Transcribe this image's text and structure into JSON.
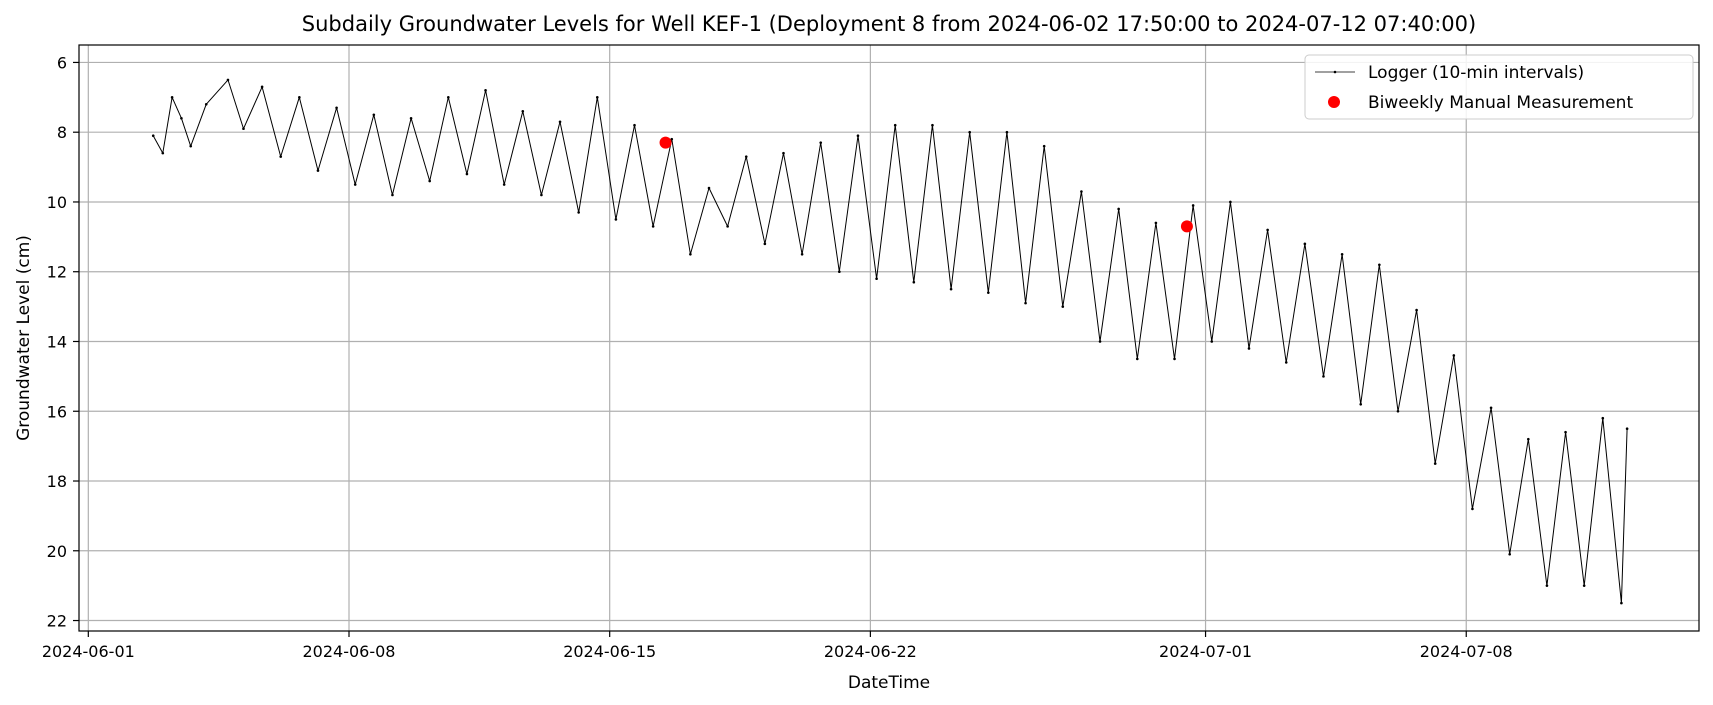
{
  "chart_data": {
    "type": "line",
    "title": "Subdaily Groundwater Levels for Well KEF-1 (Deployment 8 from 2024-06-02 17:50:00 to 2024-07-12 07:40:00)",
    "xlabel": "DateTime",
    "ylabel": "Groundwater Level (cm)",
    "xlim": [
      "2024-05-31 18:00",
      "2024-07-14 06:00"
    ],
    "ylim": [
      22.3,
      5.5
    ],
    "y_inverted": true,
    "grid": true,
    "legend_position": "top-right",
    "x_ticks": [
      "2024-06-01",
      "2024-06-08",
      "2024-06-15",
      "2024-06-22",
      "2024-07-01",
      "2024-07-08"
    ],
    "y_ticks": [
      6,
      8,
      10,
      12,
      14,
      16,
      18,
      20,
      22
    ],
    "series": [
      {
        "name": "Logger (10-min intervals)",
        "kind": "line",
        "color": "#000000",
        "x": [
          "2024-06-02 17:50",
          "2024-06-03 00:00",
          "2024-06-03 06:00",
          "2024-06-03 12:00",
          "2024-06-03 18:00",
          "2024-06-04 04:00",
          "2024-06-04 18:00",
          "2024-06-05 04:00",
          "2024-06-05 16:00",
          "2024-06-06 04:00",
          "2024-06-06 16:00",
          "2024-06-07 04:00",
          "2024-06-07 16:00",
          "2024-06-08 04:00",
          "2024-06-08 16:00",
          "2024-06-09 04:00",
          "2024-06-09 16:00",
          "2024-06-10 04:00",
          "2024-06-10 16:00",
          "2024-06-11 04:00",
          "2024-06-11 16:00",
          "2024-06-12 04:00",
          "2024-06-12 16:00",
          "2024-06-13 04:00",
          "2024-06-13 16:00",
          "2024-06-14 04:00",
          "2024-06-14 16:00",
          "2024-06-15 04:00",
          "2024-06-15 16:00",
          "2024-06-16 04:00",
          "2024-06-16 16:00",
          "2024-06-17 04:00",
          "2024-06-17 16:00",
          "2024-06-18 04:00",
          "2024-06-18 16:00",
          "2024-06-19 04:00",
          "2024-06-19 16:00",
          "2024-06-20 04:00",
          "2024-06-20 16:00",
          "2024-06-21 04:00",
          "2024-06-21 16:00",
          "2024-06-22 04:00",
          "2024-06-22 16:00",
          "2024-06-23 04:00",
          "2024-06-23 16:00",
          "2024-06-24 04:00",
          "2024-06-24 16:00",
          "2024-06-25 04:00",
          "2024-06-25 16:00",
          "2024-06-26 04:00",
          "2024-06-26 16:00",
          "2024-06-27 04:00",
          "2024-06-27 16:00",
          "2024-06-28 04:00",
          "2024-06-28 16:00",
          "2024-06-29 04:00",
          "2024-06-29 16:00",
          "2024-06-30 04:00",
          "2024-06-30 16:00",
          "2024-07-01 04:00",
          "2024-07-01 16:00",
          "2024-07-02 04:00",
          "2024-07-02 16:00",
          "2024-07-03 04:00",
          "2024-07-03 16:00",
          "2024-07-04 04:00",
          "2024-07-04 16:00",
          "2024-07-05 04:00",
          "2024-07-05 16:00",
          "2024-07-06 04:00",
          "2024-07-06 16:00",
          "2024-07-07 04:00",
          "2024-07-07 16:00",
          "2024-07-08 04:00",
          "2024-07-08 16:00",
          "2024-07-09 04:00",
          "2024-07-09 16:00",
          "2024-07-10 04:00",
          "2024-07-10 16:00",
          "2024-07-11 04:00",
          "2024-07-11 16:00",
          "2024-07-12 04:00",
          "2024-07-12 07:40"
        ],
        "y": [
          8.1,
          8.6,
          7.0,
          7.6,
          8.4,
          7.2,
          6.5,
          7.9,
          6.7,
          8.7,
          7.0,
          9.1,
          7.3,
          9.5,
          7.5,
          9.8,
          7.6,
          9.4,
          7.0,
          9.2,
          6.8,
          9.5,
          7.4,
          9.8,
          7.7,
          10.3,
          7.0,
          10.5,
          7.8,
          10.7,
          8.2,
          11.5,
          9.6,
          10.7,
          8.7,
          11.2,
          8.6,
          11.5,
          8.3,
          12.0,
          8.1,
          12.2,
          7.8,
          12.3,
          7.8,
          12.5,
          8.0,
          12.6,
          8.0,
          12.9,
          8.4,
          13.0,
          9.7,
          14.0,
          10.2,
          14.5,
          10.6,
          14.5,
          10.1,
          14.0,
          10.0,
          14.2,
          10.8,
          14.6,
          11.2,
          15.0,
          11.5,
          15.8,
          11.8,
          16.0,
          13.1,
          17.5,
          14.4,
          18.8,
          15.9,
          20.1,
          16.8,
          21.0,
          16.6,
          21.0,
          16.2,
          21.5,
          16.5
        ]
      },
      {
        "name": "Biweekly Manual Measurement",
        "kind": "scatter",
        "color": "#ff0000",
        "x": [
          "2024-06-16 12:00",
          "2024-06-30 12:00"
        ],
        "y": [
          8.3,
          10.7
        ]
      }
    ]
  }
}
